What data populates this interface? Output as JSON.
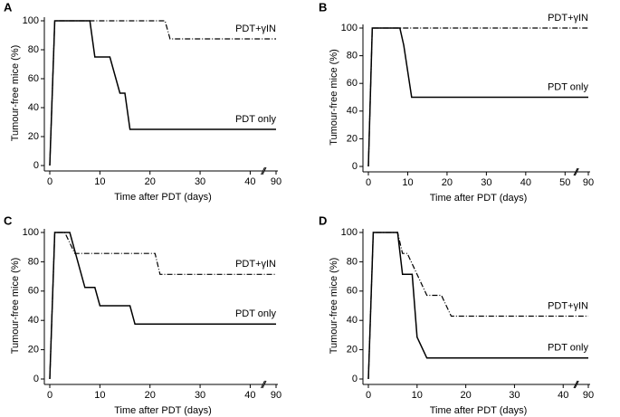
{
  "chart_data": [
    {
      "type": "line",
      "panel_label": "A",
      "ylabel": "Tumour-free mice (%)",
      "xlabel": "Time after PDT (days)",
      "xlim": [
        0,
        90
      ],
      "axis_break": [
        42,
        88
      ],
      "xticks": [
        0,
        10,
        20,
        30,
        40,
        90
      ],
      "ylim": [
        0,
        100
      ],
      "yticks": [
        0,
        20,
        40,
        60,
        80,
        100
      ],
      "series": [
        {
          "name": "PDT only",
          "color": "#000000",
          "line_style": "solid",
          "x": [
            0,
            1,
            8,
            9,
            12,
            14,
            15,
            16,
            90
          ],
          "values": [
            0,
            100,
            100,
            75,
            75,
            50,
            50,
            25,
            25
          ]
        },
        {
          "name": "PDT+γIN",
          "color": "#000000",
          "line_style": "dashdot",
          "x": [
            0,
            1,
            23,
            24,
            90
          ],
          "values": [
            0,
            100,
            100,
            87.5,
            87.5
          ]
        }
      ]
    },
    {
      "type": "line",
      "panel_label": "B",
      "ylabel": "Tumour-free mice (%)",
      "xlabel": "Time after PDT (days)",
      "xlim": [
        0,
        90
      ],
      "axis_break": [
        52,
        88
      ],
      "xticks": [
        0,
        10,
        20,
        30,
        40,
        50,
        90
      ],
      "ylim": [
        0,
        100
      ],
      "yticks": [
        0,
        20,
        40,
        60,
        80,
        100
      ],
      "series": [
        {
          "name": "PDT only",
          "color": "#000000",
          "line_style": "solid",
          "x": [
            0,
            1,
            8,
            9,
            11,
            90
          ],
          "values": [
            0,
            100,
            100,
            87.5,
            50,
            50
          ]
        },
        {
          "name": "PDT+γIN",
          "color": "#000000",
          "line_style": "dashdot",
          "x": [
            0,
            1,
            90
          ],
          "values": [
            0,
            100,
            100
          ]
        }
      ]
    },
    {
      "type": "line",
      "panel_label": "C",
      "ylabel": "Tumour-free mice (%)",
      "xlabel": "Time after PDT (days)",
      "xlim": [
        0,
        90
      ],
      "axis_break": [
        42,
        88
      ],
      "xticks": [
        0,
        10,
        20,
        30,
        40,
        90
      ],
      "ylim": [
        0,
        100
      ],
      "yticks": [
        0,
        20,
        40,
        60,
        80,
        100
      ],
      "series": [
        {
          "name": "PDT only",
          "color": "#000000",
          "line_style": "solid",
          "x": [
            0,
            1,
            4,
            7,
            9,
            10,
            16,
            17,
            90
          ],
          "values": [
            0,
            100,
            100,
            62.5,
            62.5,
            50,
            50,
            37.5,
            37.5
          ]
        },
        {
          "name": "PDT+γIN",
          "color": "#000000",
          "line_style": "dashdot",
          "x": [
            0,
            1,
            3,
            5,
            21,
            22,
            90
          ],
          "values": [
            0,
            100,
            100,
            85.7,
            85.7,
            71.4,
            71.4
          ]
        }
      ]
    },
    {
      "type": "line",
      "panel_label": "D",
      "ylabel": "Tumour-free mice (%)",
      "xlabel": "Time after PDT (days)",
      "xlim": [
        0,
        90
      ],
      "axis_break": [
        42,
        88
      ],
      "xticks": [
        0,
        10,
        20,
        30,
        40,
        90
      ],
      "ylim": [
        0,
        100
      ],
      "yticks": [
        0,
        20,
        40,
        60,
        80,
        100
      ],
      "series": [
        {
          "name": "PDT only",
          "color": "#000000",
          "line_style": "solid",
          "x": [
            0,
            1,
            6,
            7,
            9,
            10,
            12,
            90
          ],
          "values": [
            0,
            100,
            100,
            71.4,
            71.4,
            28.6,
            14.3,
            14.3
          ]
        },
        {
          "name": "PDT+γIN",
          "color": "#000000",
          "line_style": "dashdot",
          "x": [
            0,
            1,
            6,
            7,
            8,
            10,
            12,
            15,
            17,
            90
          ],
          "values": [
            0,
            100,
            100,
            85.7,
            85.7,
            71.4,
            57.1,
            57.1,
            42.9,
            42.9
          ]
        }
      ]
    }
  ]
}
